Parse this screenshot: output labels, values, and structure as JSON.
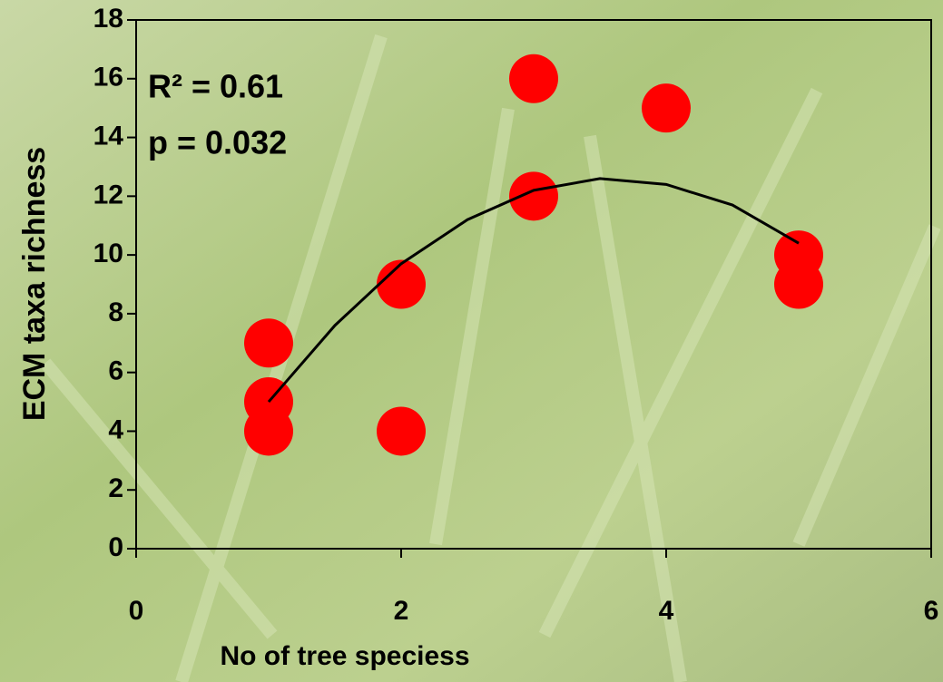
{
  "chart_data": {
    "type": "scatter",
    "x_label": "No of tree speciess",
    "y_label": "ECM taxa richness",
    "annotations": [
      "R² = 0.61",
      "p = 0.032"
    ],
    "series": [
      {
        "color": "#ff0000",
        "x": [
          1,
          1,
          1,
          2,
          2,
          3,
          3,
          4,
          5,
          5
        ],
        "values": [
          7,
          5,
          4,
          9,
          4,
          16,
          12,
          15,
          10,
          9
        ]
      }
    ],
    "trendline": {
      "color": "#000000",
      "x": [
        1,
        1.5,
        2,
        2.5,
        3,
        3.5,
        4,
        4.5,
        5
      ],
      "values": [
        5,
        7.6,
        9.7,
        11.2,
        12.2,
        12.6,
        12.4,
        11.7,
        10.4
      ]
    },
    "xlim": [
      0,
      6
    ],
    "xticks": [
      0,
      2,
      4,
      6
    ],
    "ylim": [
      0,
      18
    ],
    "yticks": [
      0,
      2,
      4,
      6,
      8,
      10,
      12,
      14,
      16,
      18
    ]
  }
}
